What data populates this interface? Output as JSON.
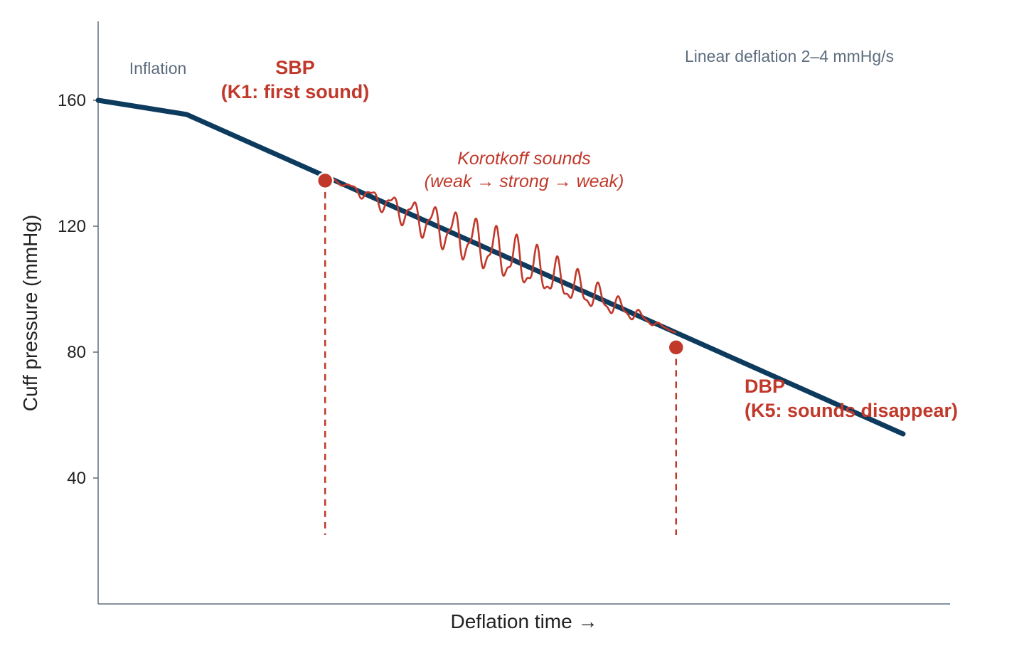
{
  "chart_data": {
    "type": "line",
    "xlabel": "Deflation time →",
    "ylabel": "Cuff pressure (mmHg)",
    "ylim": [
      0,
      185
    ],
    "xlim": [
      0,
      100
    ],
    "yticks": [
      40,
      80,
      120,
      160
    ],
    "grid": false,
    "colors": {
      "pressure_line": "#0d3b5e",
      "accent": "#c0392b",
      "note": "#5d6d7e",
      "axis": "#5d6d7e",
      "text": "#222222"
    },
    "series": [
      {
        "x": [
          0,
          11,
          100
        ],
        "y": [
          160,
          155.5,
          54
        ]
      }
    ],
    "markers": [
      {
        "id": "sbp",
        "x": 28.2,
        "y": 134.5,
        "label_line1": "SBP",
        "label_line2": "(K1: first sound)"
      },
      {
        "id": "dbp",
        "x": 71.8,
        "y": 81.5,
        "label_line1": "DBP",
        "label_line2": "(K5: sounds disappear)"
      }
    ],
    "annotations": {
      "inflation": "Inflation",
      "deflation_rate": "Linear deflation 2–4 mmHg/s",
      "sounds_line1": "Korotkoff sounds",
      "sounds_line2": "(weak → strong → weak)"
    },
    "oscillation": {
      "x_start": 28.2,
      "x_end": 71.8,
      "max_amplitude_mmHg": 9,
      "cycles": 17
    }
  }
}
